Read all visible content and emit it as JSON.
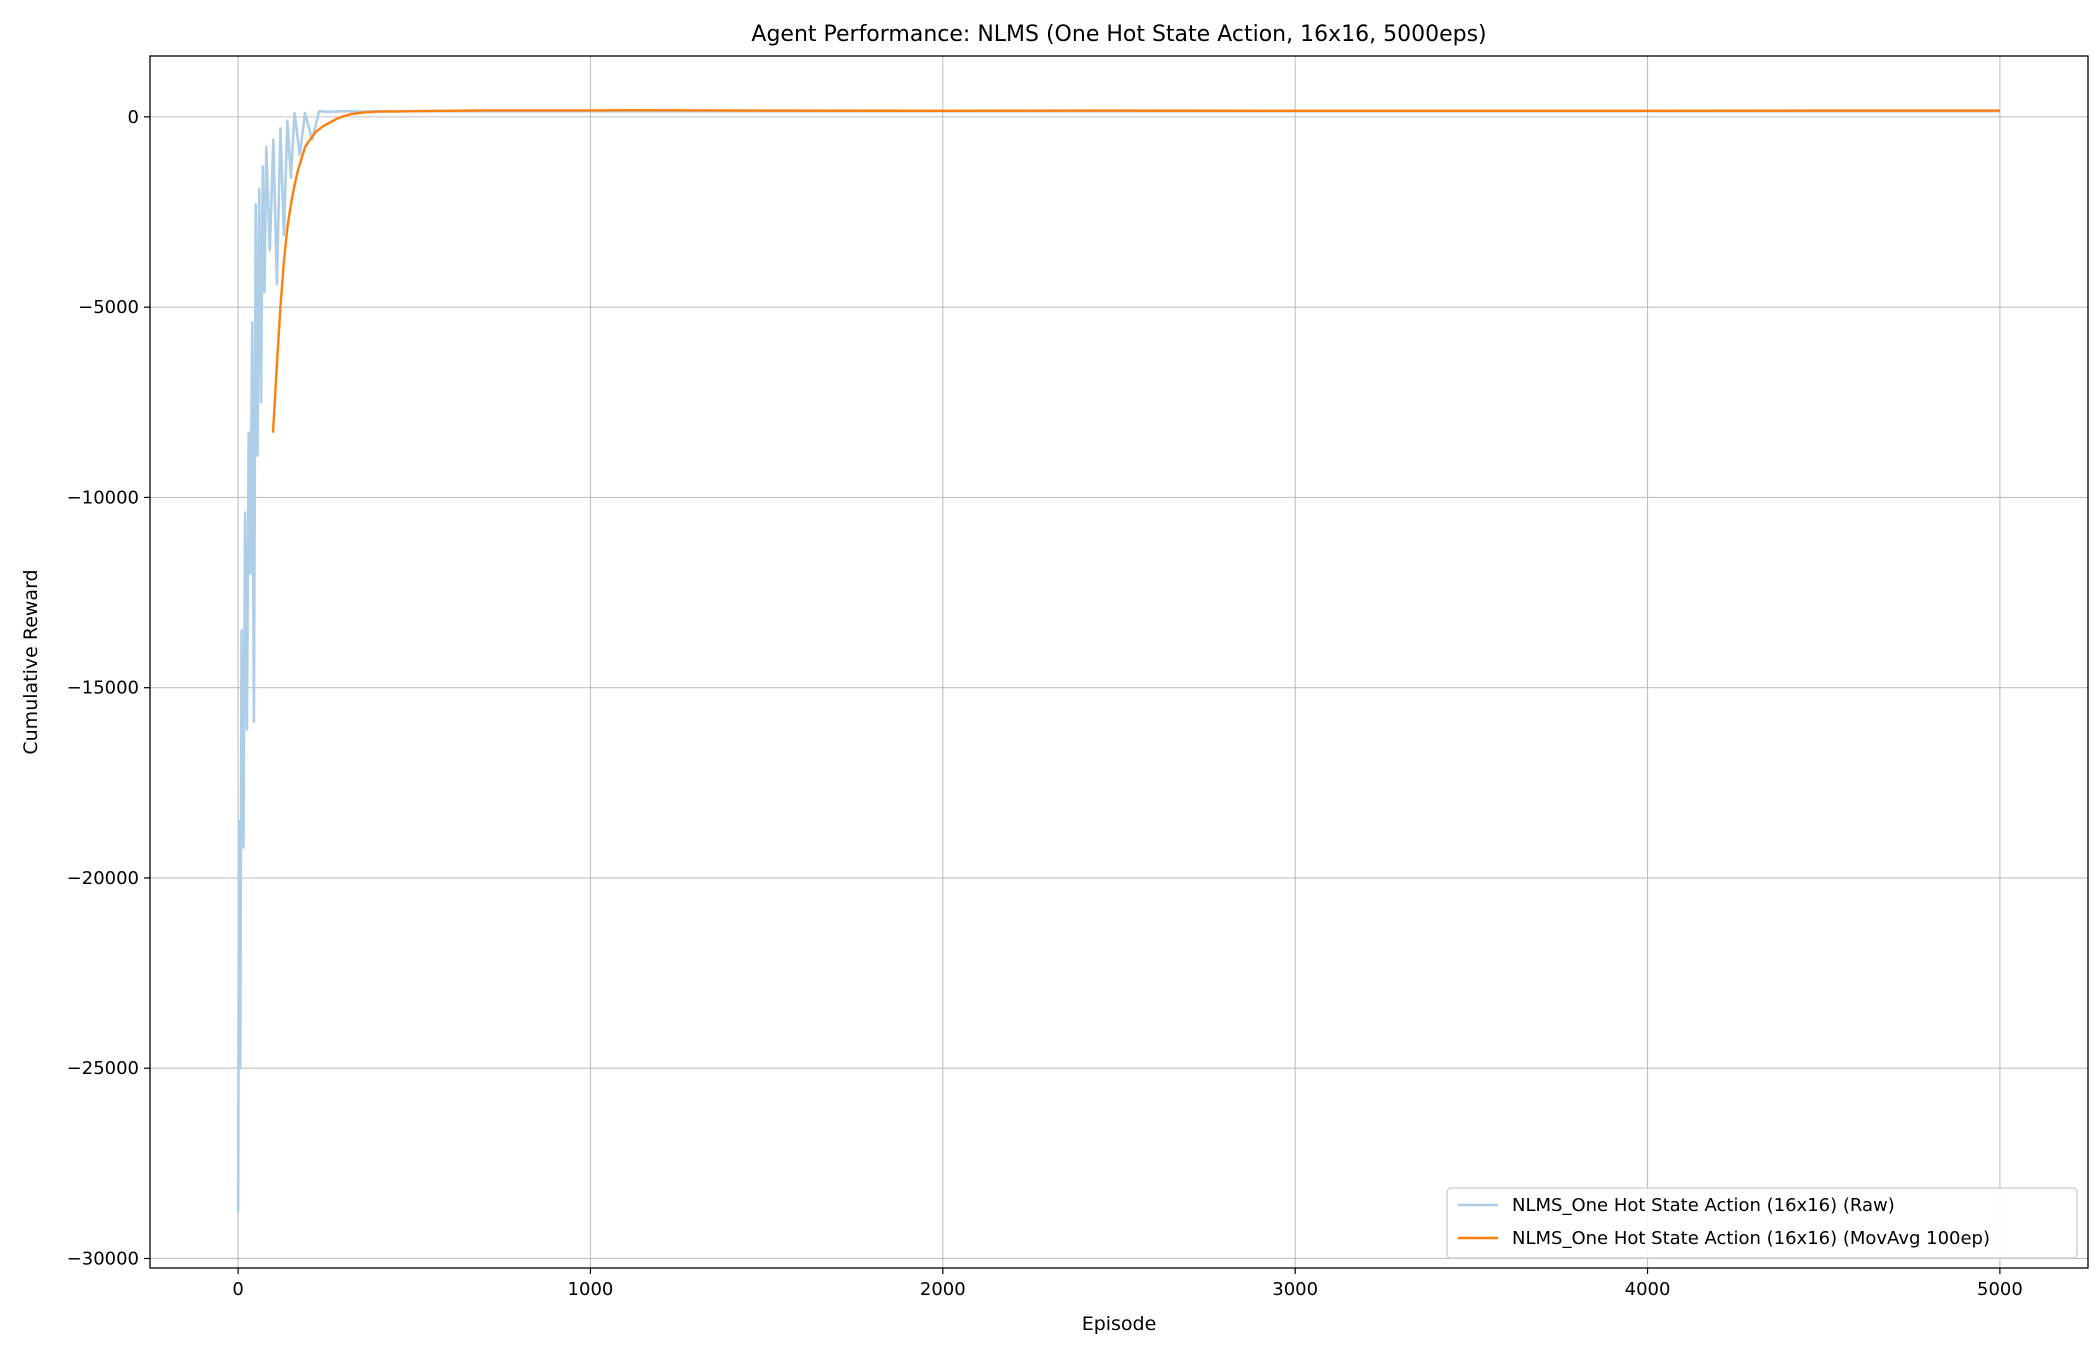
{
  "chart_data": {
    "type": "line",
    "title": "Agent Performance: NLMS (One Hot State Action, 16x16, 5000eps)",
    "xlabel": "Episode",
    "ylabel": "Cumulative Reward",
    "xlim": [
      -250,
      5250
    ],
    "ylim": [
      -30250,
      1600
    ],
    "x_ticks": [
      0,
      1000,
      2000,
      3000,
      4000,
      5000
    ],
    "x_tick_labels": [
      "0",
      "1000",
      "2000",
      "3000",
      "4000",
      "5000"
    ],
    "y_ticks": [
      -30000,
      -25000,
      -20000,
      -15000,
      -10000,
      -5000,
      0
    ],
    "y_tick_labels": [
      "−30000",
      "−25000",
      "−20000",
      "−15000",
      "−10000",
      "−5000",
      "0"
    ],
    "grid": true,
    "legend_position": "bottom-right",
    "series": [
      {
        "name": "NLMS_One Hot State Action (16x16) (Raw)",
        "color": "#aecde6",
        "style": "raw",
        "x": [
          0,
          3,
          6,
          10,
          15,
          20,
          25,
          30,
          35,
          40,
          45,
          50,
          55,
          60,
          65,
          70,
          75,
          80,
          90,
          100,
          110,
          120,
          130,
          140,
          150,
          160,
          175,
          190,
          210,
          230,
          260,
          300,
          350,
          400,
          450,
          500,
          600,
          700,
          800,
          1000,
          1200,
          1400,
          1600,
          1800,
          2000,
          2500,
          3000,
          3500,
          3660,
          4000,
          4500,
          5000
        ],
        "values": [
          -28800,
          -18500,
          -25000,
          -13500,
          -19200,
          -10400,
          -16100,
          -8300,
          -12000,
          -5400,
          -15900,
          -2300,
          -8900,
          -1900,
          -7500,
          -1300,
          -4600,
          -800,
          -3500,
          -600,
          -4400,
          -300,
          -3100,
          -100,
          -1600,
          100,
          -1000,
          100,
          -600,
          150,
          130,
          150,
          140,
          150,
          140,
          150,
          150,
          150,
          150,
          150,
          150,
          150,
          150,
          150,
          150,
          150,
          150,
          150,
          150,
          150,
          150,
          150
        ]
      },
      {
        "name": "NLMS_One Hot State Action (16x16) (MovAvg 100ep)",
        "color": "#ff7f0e",
        "style": "smooth",
        "x": [
          99,
          110,
          120,
          130,
          140,
          150,
          160,
          170,
          180,
          190,
          200,
          220,
          240,
          260,
          280,
          300,
          320,
          350,
          380,
          400,
          450,
          500,
          600,
          700,
          800,
          1000,
          1100,
          1500,
          2000,
          2500,
          3000,
          3500,
          4000,
          4500,
          5000
        ],
        "values": [
          -8300,
          -6500,
          -5000,
          -3800,
          -2900,
          -2300,
          -1800,
          -1400,
          -1100,
          -800,
          -650,
          -400,
          -250,
          -150,
          -50,
          20,
          70,
          110,
          130,
          140,
          145,
          150,
          160,
          170,
          170,
          170,
          175,
          165,
          160,
          165,
          160,
          160,
          160,
          165,
          165
        ]
      }
    ]
  }
}
